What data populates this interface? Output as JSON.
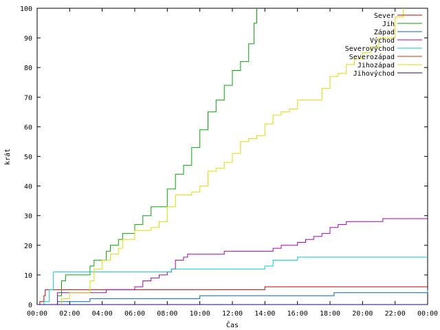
{
  "chart_data": {
    "type": "line",
    "title": "",
    "xlabel": "Čas",
    "ylabel": "krát",
    "xlim": [
      "00:00",
      "24:00"
    ],
    "ylim": [
      0,
      100
    ],
    "x_ticks": [
      "00:00",
      "02:00",
      "04:00",
      "06:00",
      "08:00",
      "10:00",
      "12:00",
      "14:00",
      "16:00",
      "18:00",
      "20:00",
      "22:00",
      "00:00"
    ],
    "y_ticks": [
      "0",
      "10",
      "20",
      "30",
      "40",
      "50",
      "60",
      "70",
      "80",
      "90",
      "100"
    ],
    "grid": false,
    "legend_position": "top-right",
    "series": [
      {
        "name": "Sever",
        "color": "#cc0000",
        "x": [
          "00:00",
          "00:10",
          "00:25",
          "00:30",
          "13:50",
          "14:00",
          "24:00"
        ],
        "y": [
          0,
          1,
          3,
          5,
          5,
          6,
          6
        ]
      },
      {
        "name": "Jih",
        "color": "#00aa00",
        "x": [
          "00:00",
          "01:00",
          "01:15",
          "01:30",
          "01:45",
          "03:00",
          "03:15",
          "03:30",
          "04:00",
          "04:15",
          "04:30",
          "05:00",
          "05:15",
          "05:30",
          "06:00",
          "06:30",
          "07:00",
          "07:30",
          "08:00",
          "08:30",
          "09:00",
          "09:30",
          "10:00",
          "10:30",
          "11:00",
          "11:30",
          "12:00",
          "12:30",
          "13:00",
          "13:20",
          "13:30"
        ],
        "y": [
          0,
          0,
          3,
          8,
          10,
          10,
          13,
          15,
          15,
          18,
          20,
          22,
          24,
          24,
          27,
          30,
          33,
          33,
          39,
          44,
          47,
          53,
          59,
          65,
          69,
          74,
          79,
          82,
          88,
          95,
          100
        ]
      },
      {
        "name": "Západ",
        "color": "#0066cc",
        "x": [
          "00:00",
          "01:00",
          "01:15",
          "03:00",
          "03:15",
          "09:50",
          "10:00",
          "18:00",
          "18:15",
          "23:50",
          "24:00"
        ],
        "y": [
          0,
          0,
          1,
          1,
          2,
          2,
          3,
          3,
          4,
          4,
          5
        ]
      },
      {
        "name": "Východ",
        "color": "#aa00aa",
        "x": [
          "00:00",
          "01:00",
          "01:15",
          "04:00",
          "04:15",
          "06:00",
          "06:30",
          "07:00",
          "07:30",
          "08:00",
          "08:15",
          "08:30",
          "09:00",
          "09:15",
          "11:00",
          "11:30",
          "14:30",
          "15:00",
          "16:00",
          "16:30",
          "17:00",
          "17:30",
          "18:00",
          "18:30",
          "19:00",
          "21:00",
          "21:15",
          "24:00"
        ],
        "y": [
          0,
          0,
          4,
          4,
          5,
          6,
          8,
          9,
          10,
          11,
          12,
          15,
          16,
          17,
          17,
          18,
          19,
          20,
          21,
          22,
          23,
          24,
          26,
          27,
          28,
          28,
          29,
          29
        ]
      },
      {
        "name": "Severovýchod",
        "color": "#00cccc",
        "x": [
          "00:00",
          "00:25",
          "00:45",
          "01:00",
          "08:00",
          "08:15",
          "14:00",
          "14:30",
          "15:30",
          "16:00",
          "24:00"
        ],
        "y": [
          0,
          1,
          5,
          11,
          11,
          12,
          13,
          15,
          15,
          16,
          16
        ]
      },
      {
        "name": "Severozápad",
        "color": "#cc3300",
        "x": [
          "00:00",
          "00:40",
          "01:00",
          "24:00"
        ],
        "y": [
          0,
          0,
          0,
          0
        ]
      },
      {
        "name": "Jihozápad",
        "color": "#dddd00",
        "x": [
          "00:00",
          "01:10",
          "01:30",
          "02:00",
          "03:00",
          "03:15",
          "03:30",
          "04:00",
          "04:30",
          "05:00",
          "05:15",
          "06:00",
          "07:00",
          "07:30",
          "08:00",
          "08:30",
          "09:00",
          "09:30",
          "10:00",
          "10:30",
          "11:00",
          "11:30",
          "12:00",
          "12:30",
          "13:00",
          "13:30",
          "14:00",
          "14:30",
          "15:00",
          "15:30",
          "16:00",
          "17:00",
          "17:30",
          "18:00",
          "18:30",
          "19:00",
          "19:30",
          "20:00",
          "20:30",
          "21:00",
          "22:00",
          "22:30"
        ],
        "y": [
          0,
          0,
          2,
          4,
          4,
          8,
          12,
          15,
          17,
          19,
          22,
          25,
          26,
          28,
          33,
          37,
          37,
          38,
          40,
          45,
          46,
          48,
          51,
          55,
          56,
          57,
          61,
          64,
          65,
          66,
          69,
          69,
          73,
          77,
          78,
          81,
          83,
          85,
          87,
          90,
          97,
          100
        ]
      },
      {
        "name": "Jihovýchod",
        "color": "#220088",
        "x": [
          "00:00",
          "01:05",
          "01:15",
          "24:00"
        ],
        "y": [
          0,
          0,
          0,
          0
        ]
      }
    ]
  }
}
